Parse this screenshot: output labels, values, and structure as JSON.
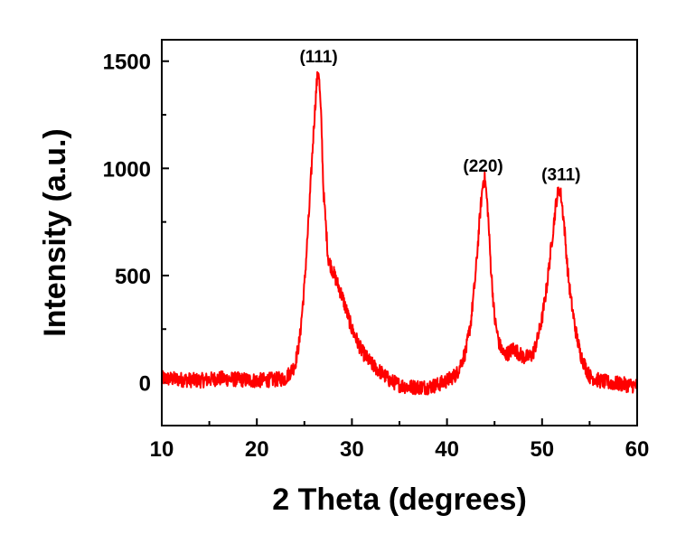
{
  "chart_data": {
    "type": "line",
    "title": "",
    "xlabel": "2 Theta (degrees)",
    "ylabel": "Intensity (a.u.)",
    "xlim": [
      10,
      60
    ],
    "ylim": [
      -200,
      1600
    ],
    "x_ticks": [
      10,
      20,
      30,
      40,
      50,
      60
    ],
    "y_ticks": [
      0,
      500,
      1000,
      1500
    ],
    "grid": false,
    "legend": "none",
    "line_color": "#ff0000",
    "series": [
      {
        "x": [
          10,
          12,
          14,
          16,
          18,
          20,
          22,
          23,
          24,
          24.5,
          25,
          25.5,
          26,
          26.3,
          26.5,
          26.8,
          27,
          27.5,
          28,
          29,
          30,
          31,
          32,
          33,
          34,
          35,
          36,
          37,
          38,
          39,
          40,
          41,
          42,
          42.5,
          43,
          43.5,
          43.8,
          44,
          44.3,
          44.6,
          45,
          45.5,
          46,
          46.5,
          47,
          47.5,
          48,
          48.5,
          49,
          49.5,
          50,
          50.5,
          51,
          51.5,
          51.8,
          52,
          52.3,
          52.7,
          53,
          53.5,
          54,
          54.5,
          55,
          56,
          57,
          58,
          59,
          60
        ],
        "y": [
          20,
          15,
          10,
          20,
          15,
          10,
          15,
          20,
          80,
          200,
          450,
          800,
          1200,
          1400,
          1460,
          1200,
          900,
          580,
          520,
          400,
          250,
          150,
          90,
          50,
          10,
          -10,
          -20,
          -20,
          -20,
          -10,
          10,
          40,
          150,
          280,
          500,
          800,
          940,
          950,
          800,
          550,
          300,
          180,
          130,
          140,
          160,
          140,
          120,
          120,
          130,
          200,
          300,
          450,
          650,
          850,
          910,
          870,
          750,
          520,
          400,
          250,
          140,
          80,
          30,
          10,
          0,
          -5,
          -10,
          -15
        ]
      }
    ],
    "annotations": [
      {
        "text": "(111)",
        "x": 26.5,
        "y": 1460
      },
      {
        "text": "(220)",
        "x": 43.8,
        "y": 950
      },
      {
        "text": "(311)",
        "x": 52.0,
        "y": 910
      }
    ]
  }
}
